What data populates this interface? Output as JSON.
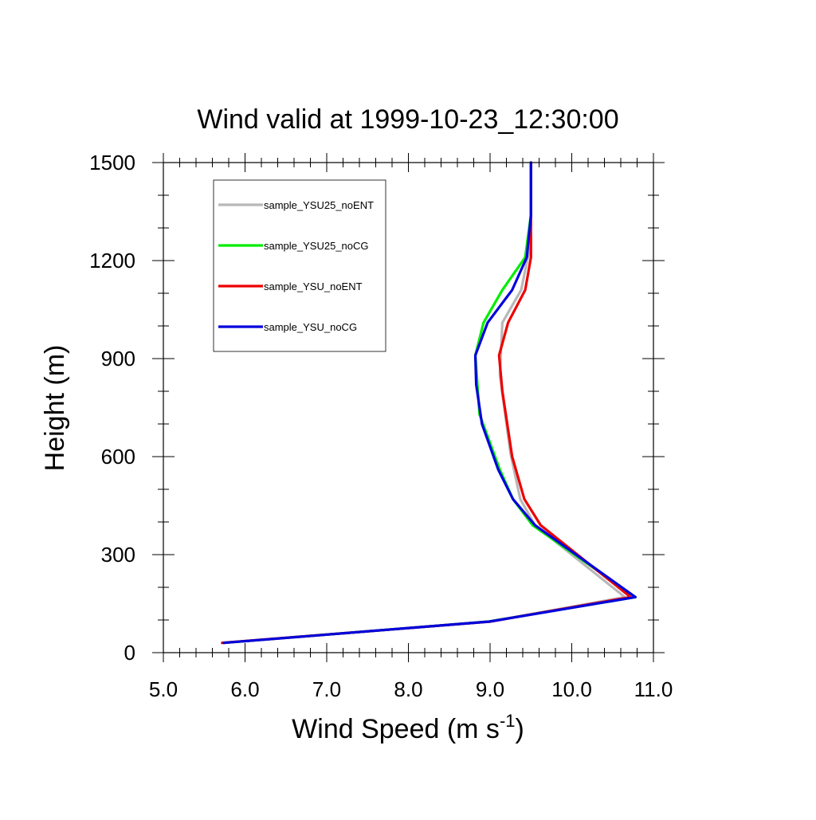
{
  "chart_data": {
    "type": "line",
    "title": "Wind valid at 1999-10-23_12:30:00",
    "xlabel": "Wind Speed (m s",
    "xlabel_sup": "-1",
    "xlabel_close": ")",
    "ylabel": "Height (m)",
    "xlim": [
      5.0,
      11.0
    ],
    "ylim": [
      0,
      1500
    ],
    "xticks": [
      5.0,
      6.0,
      7.0,
      8.0,
      9.0,
      10.0,
      11.0
    ],
    "xtick_labels": [
      "5.0",
      "6.0",
      "7.0",
      "8.0",
      "9.0",
      "10.0",
      "11.0"
    ],
    "yticks": [
      0,
      300,
      600,
      900,
      1200,
      1500
    ],
    "ytick_labels": [
      "0",
      "300",
      "600",
      "900",
      "1200",
      "1500"
    ],
    "grid": false,
    "legend_position": "top-left",
    "series": [
      {
        "name": "sample_YSU25_noENT",
        "color": "#b8b8b8",
        "x": [
          5.72,
          9.0,
          10.65,
          9.55,
          9.37,
          9.25,
          9.12,
          9.15,
          9.38,
          9.47,
          9.5,
          9.5
        ],
        "y": [
          30,
          95,
          170,
          390,
          470,
          610,
          850,
          1010,
          1110,
          1220,
          1340,
          1500
        ]
      },
      {
        "name": "sample_YSU25_noCG",
        "color": "#00ee00",
        "x": [
          5.74,
          8.98,
          10.78,
          9.52,
          9.28,
          9.12,
          8.87,
          8.82,
          8.92,
          9.15,
          9.43,
          9.5,
          9.5
        ],
        "y": [
          30,
          95,
          170,
          390,
          470,
          560,
          730,
          910,
          1010,
          1110,
          1210,
          1340,
          1500
        ]
      },
      {
        "name": "sample_YSU_noENT",
        "color": "#ee0000",
        "x": [
          5.72,
          9.0,
          10.72,
          9.62,
          9.42,
          9.27,
          9.15,
          9.11,
          9.22,
          9.43,
          9.5,
          9.5
        ],
        "y": [
          30,
          95,
          170,
          390,
          470,
          600,
          800,
          910,
          1010,
          1110,
          1210,
          1500
        ]
      },
      {
        "name": "sample_YSU_noCG",
        "color": "#0000dd",
        "x": [
          5.74,
          8.99,
          10.78,
          9.55,
          9.28,
          9.1,
          8.9,
          8.83,
          8.82,
          8.97,
          9.27,
          9.45,
          9.5,
          9.5
        ],
        "y": [
          30,
          95,
          170,
          390,
          470,
          560,
          700,
          820,
          910,
          1010,
          1110,
          1210,
          1340,
          1500
        ]
      }
    ]
  }
}
